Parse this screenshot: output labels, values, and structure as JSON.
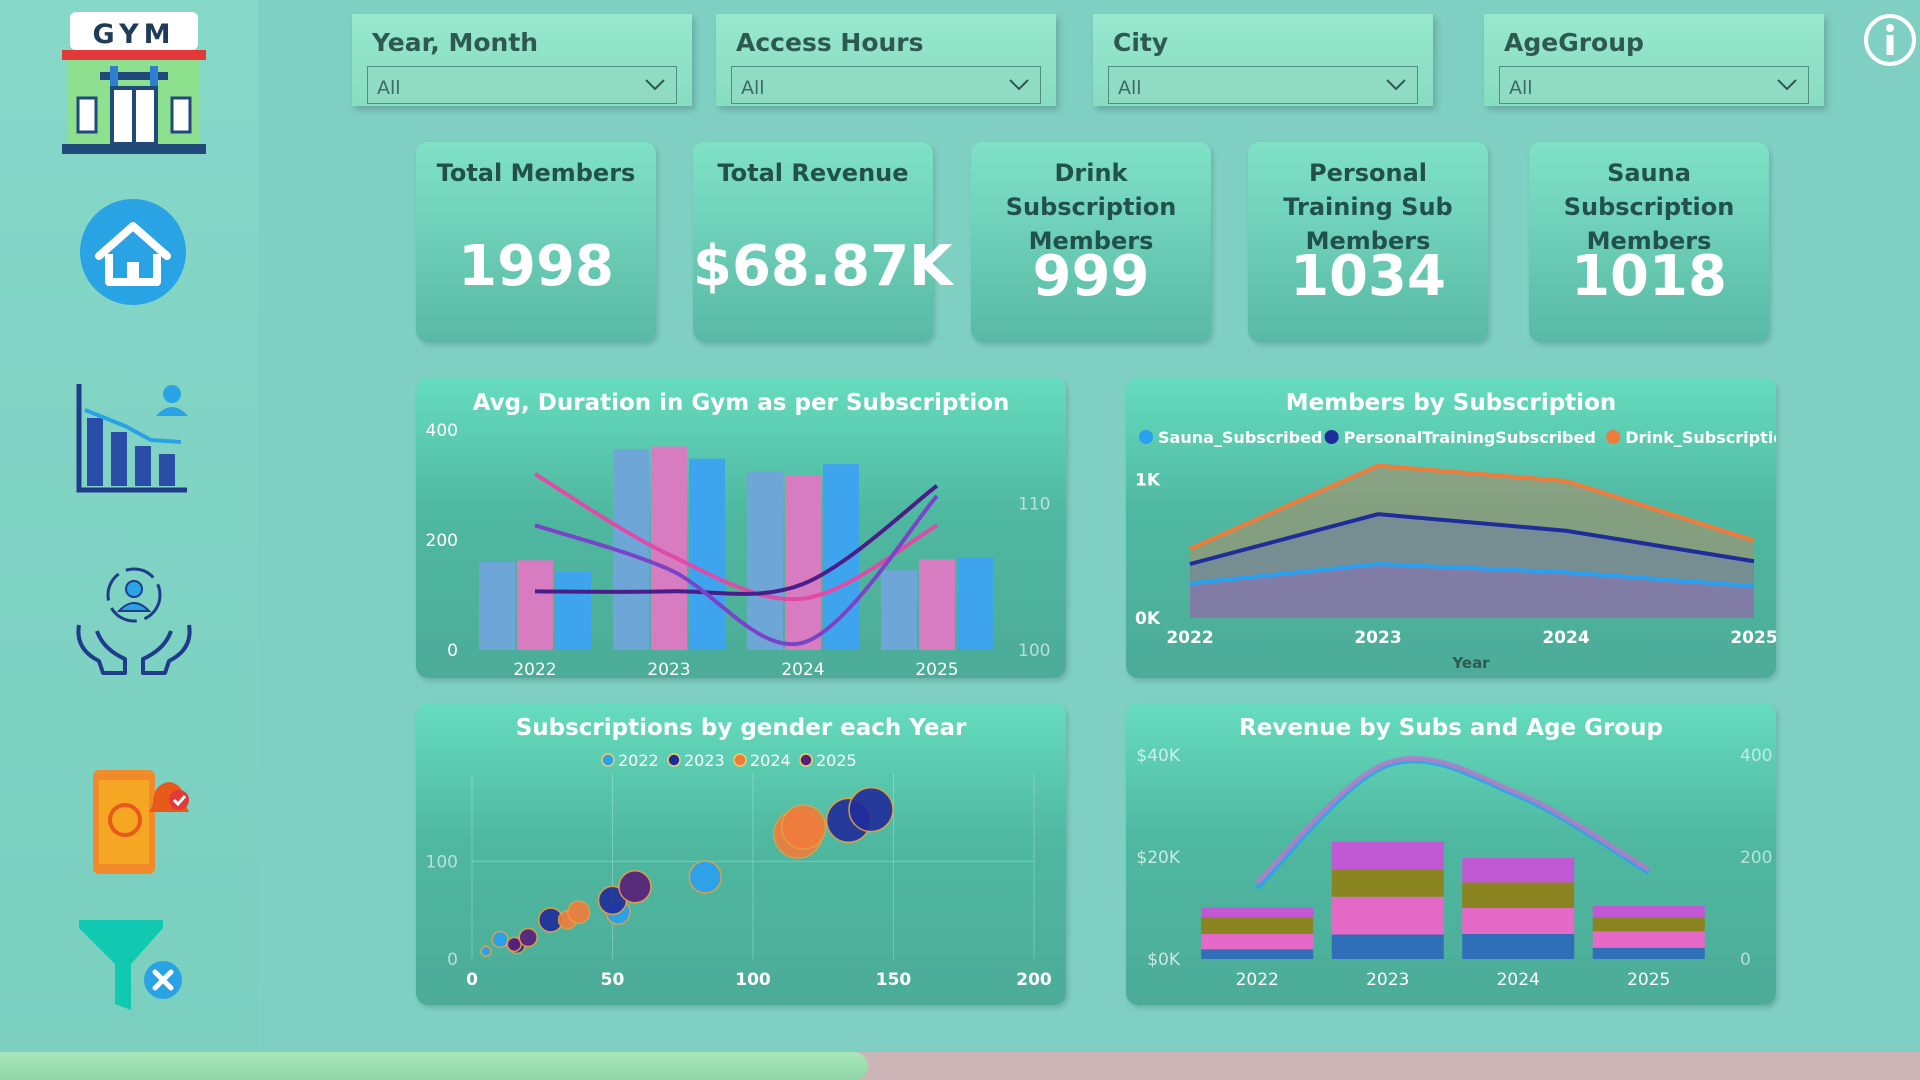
{
  "sidebar": {
    "logo_text": "GYM",
    "nav": [
      {
        "name": "home-icon"
      },
      {
        "name": "analytics-icon"
      },
      {
        "name": "member-care-icon"
      },
      {
        "name": "payment-reminder-icon"
      },
      {
        "name": "clear-filter-icon"
      }
    ]
  },
  "slicers": [
    {
      "title": "Year, Month",
      "value": "All"
    },
    {
      "title": "Access Hours",
      "value": "All"
    },
    {
      "title": "City",
      "value": "All"
    },
    {
      "title": "AgeGroup",
      "value": "All"
    }
  ],
  "cards": [
    {
      "title": "Total Members",
      "value": "1998"
    },
    {
      "title": "Total Revenue",
      "value": "$68.87K"
    },
    {
      "title": "Drink Subscription Members",
      "value": "999"
    },
    {
      "title": "Personal Training Sub Members",
      "value": "1034"
    },
    {
      "title": "Sauna Subscription Members",
      "value": "1018"
    }
  ],
  "colors": {
    "accent": "#4fb8a0",
    "sauna": "#2aa0f0",
    "personal_training": "#1f2d9a",
    "drink": "#f07c3c"
  },
  "chart_data": [
    {
      "type": "bar",
      "title": "Avg, Duration in Gym as per Subscription",
      "categories": [
        "2022",
        "2023",
        "2024",
        "2025"
      ],
      "ylim": [
        0,
        400
      ],
      "y_ticks": [
        "400",
        "200",
        "0"
      ],
      "y2lim": [
        100,
        115
      ],
      "y2_ticks": [
        "110",
        "100"
      ],
      "series": [
        {
          "values": [
            160,
            365,
            325,
            145
          ],
          "color": "#6fa6d8"
        },
        {
          "values": [
            163,
            370,
            318,
            165
          ],
          "color": "#d77cc0"
        },
        {
          "values": [
            142,
            348,
            338,
            168
          ],
          "color": "#3fa4ee"
        }
      ],
      "lines": [
        {
          "values": [
            112.0,
            106.5,
            103.5,
            108.5
          ],
          "color": "#e04aa8"
        },
        {
          "values": [
            104.0,
            104.0,
            104.5,
            111.2
          ],
          "color": "#4a1e88"
        },
        {
          "values": [
            108.5,
            105.5,
            100.5,
            110.5
          ],
          "color": "#7a44c8"
        }
      ]
    },
    {
      "type": "area",
      "title": "Members by Subscription",
      "x": [
        "2022",
        "2023",
        "2024",
        "2025"
      ],
      "xlabel": "Year",
      "ylim": [
        0,
        1300
      ],
      "y_ticks": [
        "1K",
        "0K"
      ],
      "legend": "top",
      "series": [
        {
          "name": "Sauna_Subscribed",
          "values": [
            250,
            390,
            330,
            230
          ],
          "color": "#2aa0f0"
        },
        {
          "name": "PersonalTrainingSubscribed",
          "values": [
            390,
            750,
            630,
            410
          ],
          "color": "#1f2d9a"
        },
        {
          "name": "Drink_Subscription",
          "values": [
            500,
            1100,
            990,
            560
          ],
          "color": "#f07c3c"
        }
      ]
    },
    {
      "type": "scatter",
      "title": "Subscriptions by gender each Year",
      "xlim": [
        0,
        200
      ],
      "x_ticks": [
        "0",
        "50",
        "100",
        "150",
        "200"
      ],
      "ylim": [
        0,
        170
      ],
      "y_ticks": [
        "100",
        "0"
      ],
      "legend": "top",
      "series": [
        {
          "name": "2022",
          "color": "#2aa0f0",
          "points": [
            [
              5,
              8,
              5
            ],
            [
              10,
              20,
              8
            ],
            [
              52,
              48,
              12
            ],
            [
              83,
              84,
              16
            ]
          ]
        },
        {
          "name": "2023",
          "color": "#1f2d9a",
          "points": [
            [
              16,
              14,
              8
            ],
            [
              28,
              40,
              12
            ],
            [
              50,
              60,
              14
            ],
            [
              134,
              142,
              22
            ],
            [
              142,
              153,
              22
            ]
          ]
        },
        {
          "name": "2024",
          "color": "#f07c3c",
          "points": [
            [
              34,
              40,
              9
            ],
            [
              38,
              48,
              11
            ],
            [
              116,
              128,
              24
            ],
            [
              118,
              135,
              22
            ]
          ]
        },
        {
          "name": "2025",
          "color": "#5a1e7a",
          "points": [
            [
              15,
              15,
              7
            ],
            [
              20,
              22,
              9
            ],
            [
              58,
              74,
              16
            ]
          ]
        }
      ]
    },
    {
      "type": "bar",
      "title": "Revenue by Subs and Age Group",
      "categories": [
        "2022",
        "2023",
        "2024",
        "2025"
      ],
      "ylim": [
        0,
        40000
      ],
      "y_ticks": [
        "$40K",
        "$20K",
        "$0K"
      ],
      "y2lim": [
        0,
        400
      ],
      "y2_ticks": [
        "400",
        "200",
        "0"
      ],
      "stacked": true,
      "series": [
        {
          "values": [
            1900,
            4800,
            4900,
            2200
          ],
          "color": "#2e6fb8"
        },
        {
          "values": [
            3000,
            7400,
            5100,
            3200
          ],
          "color": "#e56ac8"
        },
        {
          "values": [
            3300,
            5400,
            5000,
            2800
          ],
          "color": "#8a8520"
        },
        {
          "values": [
            1900,
            5400,
            4800,
            2200
          ],
          "color": "#c259d4"
        }
      ],
      "lines": [
        {
          "values": [
            140,
            380,
            320,
            170
          ],
          "color": "#2aa0f0"
        },
        {
          "values": [
            150,
            385,
            325,
            175
          ],
          "color": "#b27cc8"
        }
      ]
    }
  ]
}
